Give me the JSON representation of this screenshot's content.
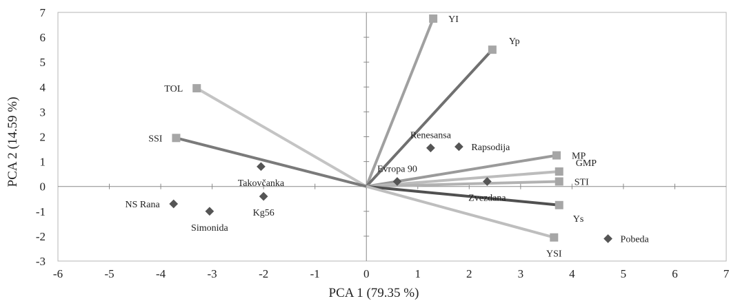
{
  "chart_data": {
    "type": "scatter",
    "title": "",
    "xlabel": "PCA 1 (79.35 %)",
    "ylabel": "PCA 2 (14.59 %)",
    "xlim": [
      -6,
      7
    ],
    "ylim": [
      -3,
      7
    ],
    "xticks": [
      "-6",
      "-5",
      "-4",
      "-3",
      "-2",
      "-1",
      "0",
      "1",
      "2",
      "3",
      "4",
      "5",
      "6",
      "7"
    ],
    "yticks": [
      "-3",
      "-2",
      "-1",
      "0",
      "1",
      "2",
      "3",
      "4",
      "5",
      "6",
      "7"
    ],
    "grid": false,
    "vectors": [
      {
        "label": "YI",
        "x": 1.3,
        "y": 6.75,
        "color": "#a0a0a0",
        "label_pos": "right"
      },
      {
        "label": "Yp",
        "x": 2.45,
        "y": 5.5,
        "color": "#707070",
        "label_pos": "right-up"
      },
      {
        "label": "TOL",
        "x": -3.3,
        "y": 3.95,
        "color": "#c4c4c4",
        "label_pos": "left"
      },
      {
        "label": "SSI",
        "x": -3.7,
        "y": 1.95,
        "color": "#7a7a7a",
        "label_pos": "left"
      },
      {
        "label": "MP",
        "x": 3.7,
        "y": 1.25,
        "color": "#9a9a9a",
        "label_pos": "right"
      },
      {
        "label": "GMP",
        "x": 3.75,
        "y": 0.6,
        "color": "#bcbcbc",
        "label_pos": "right-up"
      },
      {
        "label": "STI",
        "x": 3.75,
        "y": 0.2,
        "color": "#b2b2b2",
        "label_pos": "right"
      },
      {
        "label": "Ys",
        "x": 3.75,
        "y": -0.75,
        "color": "#505050",
        "label_pos": "right-down"
      },
      {
        "label": "YSI",
        "x": 3.65,
        "y": -2.05,
        "color": "#bebebe",
        "label_pos": "below"
      }
    ],
    "points": [
      {
        "label": "Renesansa",
        "x": 1.25,
        "y": 1.55,
        "label_pos": "above"
      },
      {
        "label": "Rapsodija",
        "x": 1.8,
        "y": 1.6,
        "label_pos": "right"
      },
      {
        "label": "Evropa 90",
        "x": 0.6,
        "y": 0.2,
        "label_pos": "above"
      },
      {
        "label": "Zvezdana",
        "x": 2.35,
        "y": 0.2,
        "label_pos": "below"
      },
      {
        "label": "Takovčanka",
        "x": -2.05,
        "y": 0.8,
        "label_pos": "below"
      },
      {
        "label": "NS Rana",
        "x": -3.75,
        "y": -0.7,
        "label_pos": "left"
      },
      {
        "label": "Simonida",
        "x": -3.05,
        "y": -1.0,
        "label_pos": "below"
      },
      {
        "label": "Kg56",
        "x": -2.0,
        "y": -0.4,
        "label_pos": "below"
      },
      {
        "label": "Pobeda",
        "x": 4.7,
        "y": -2.1,
        "label_pos": "right"
      }
    ],
    "colors": {
      "points": "#555555",
      "markers": "#a6a6a6",
      "axes": "#888888"
    }
  }
}
